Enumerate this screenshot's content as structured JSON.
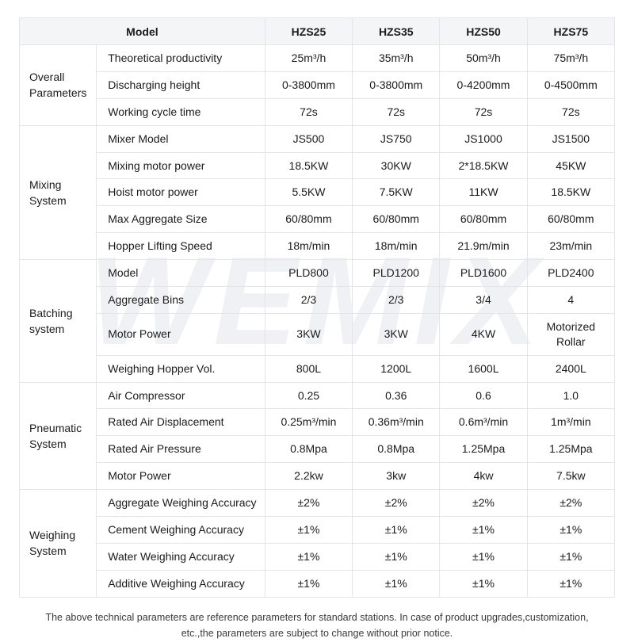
{
  "watermark": "WEMIX",
  "table": {
    "header": {
      "model_label": "Model",
      "columns": [
        "HZS25",
        "HZS35",
        "HZS50",
        "HZS75"
      ]
    },
    "groups": [
      {
        "category": "Overall Parameters",
        "rows": [
          {
            "label": "Theoretical productivity",
            "values": [
              "25m³/h",
              "35m³/h",
              "50m³/h",
              "75m³/h"
            ]
          },
          {
            "label": "Discharging height",
            "values": [
              "0-3800mm",
              "0-3800mm",
              "0-4200mm",
              "0-4500mm"
            ]
          },
          {
            "label": "Working cycle time",
            "values": [
              "72s",
              "72s",
              "72s",
              "72s"
            ]
          }
        ]
      },
      {
        "category": "Mixing System",
        "rows": [
          {
            "label": "Mixer Model",
            "values": [
              "JS500",
              "JS750",
              "JS1000",
              "JS1500"
            ]
          },
          {
            "label": "Mixing motor power",
            "values": [
              "18.5KW",
              "30KW",
              "2*18.5KW",
              "45KW"
            ]
          },
          {
            "label": "Hoist motor power",
            "values": [
              "5.5KW",
              "7.5KW",
              "11KW",
              "18.5KW"
            ]
          },
          {
            "label": "Max Aggregate Size",
            "values": [
              "60/80mm",
              "60/80mm",
              "60/80mm",
              "60/80mm"
            ]
          },
          {
            "label": "Hopper Lifting Speed",
            "values": [
              "18m/min",
              "18m/min",
              "21.9m/min",
              "23m/min"
            ]
          }
        ]
      },
      {
        "category": "Batching system",
        "rows": [
          {
            "label": "Model",
            "values": [
              "PLD800",
              "PLD1200",
              "PLD1600",
              "PLD2400"
            ]
          },
          {
            "label": "Aggregate Bins",
            "values": [
              "2/3",
              "2/3",
              "3/4",
              "4"
            ]
          },
          {
            "label": "Motor Power",
            "values": [
              "3KW",
              "3KW",
              "4KW",
              "Motorized Rollar"
            ]
          },
          {
            "label": "Weighing Hopper Vol.",
            "values": [
              "800L",
              "1200L",
              "1600L",
              "2400L"
            ]
          }
        ]
      },
      {
        "category": "Pneumatic System",
        "rows": [
          {
            "label": "Air Compressor",
            "values": [
              "0.25",
              "0.36",
              "0.6",
              "1.0"
            ]
          },
          {
            "label": "Rated Air Displacement",
            "values": [
              "0.25m³/min",
              "0.36m³/min",
              "0.6m³/min",
              "1m³/min"
            ]
          },
          {
            "label": "Rated Air Pressure",
            "values": [
              "0.8Mpa",
              "0.8Mpa",
              "1.25Mpa",
              "1.25Mpa"
            ]
          },
          {
            "label": "Motor Power",
            "values": [
              "2.2kw",
              "3kw",
              "4kw",
              "7.5kw"
            ]
          }
        ]
      },
      {
        "category": "Weighing System",
        "rows": [
          {
            "label": "Aggregate Weighing Accuracy",
            "values": [
              "±2%",
              "±2%",
              "±2%",
              "±2%"
            ]
          },
          {
            "label": "Cement Weighing Accuracy",
            "values": [
              "±1%",
              "±1%",
              "±1%",
              "±1%"
            ]
          },
          {
            "label": "Water Weighing Accuracy",
            "values": [
              "±1%",
              "±1%",
              "±1%",
              "±1%"
            ]
          },
          {
            "label": "Additive Weighing Accuracy",
            "values": [
              "±1%",
              "±1%",
              "±1%",
              "±1%"
            ]
          }
        ]
      }
    ]
  },
  "footer": {
    "line1": "The above technical parameters are reference parameters for standard stations. In case of product upgrades,customization,",
    "line2": "etc.,the parameters are subject to change without prior notice."
  }
}
